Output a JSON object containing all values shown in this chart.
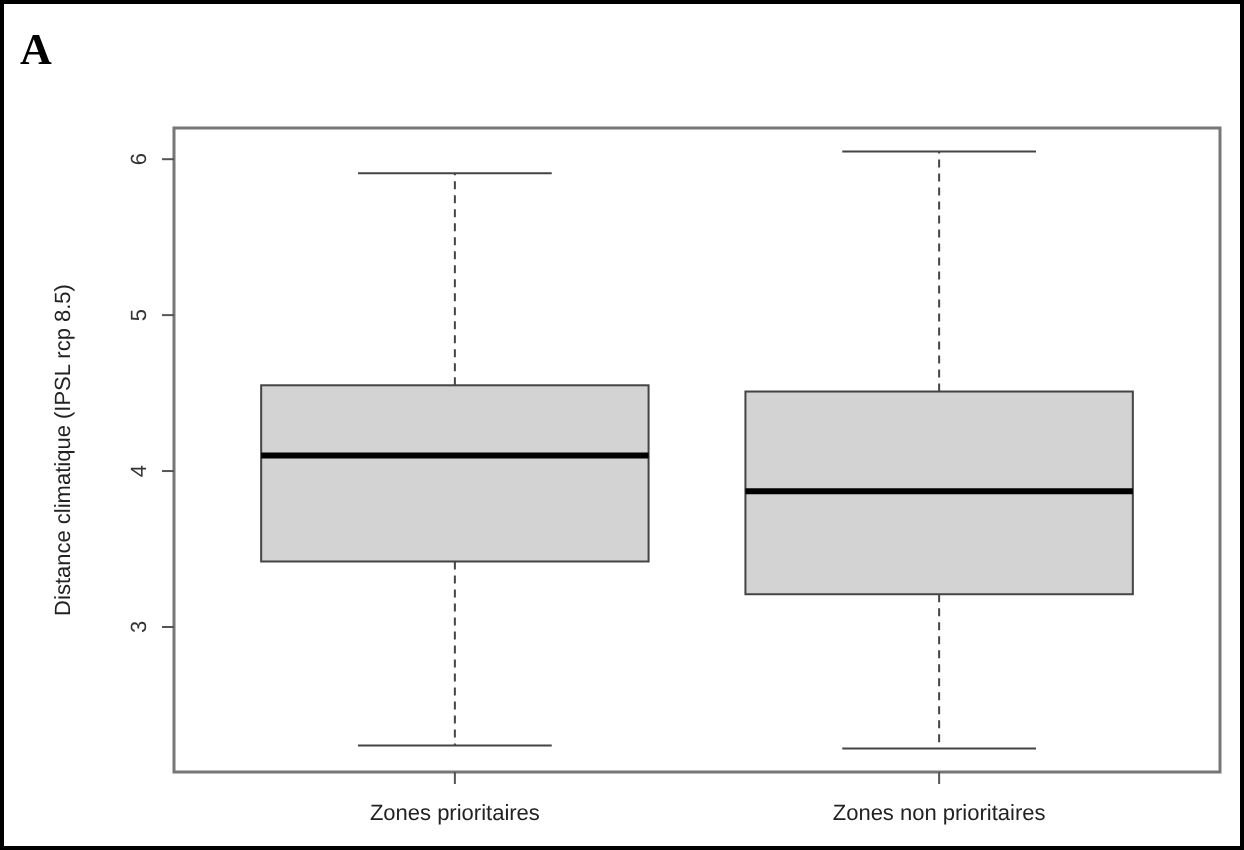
{
  "chart_data": {
    "type": "box",
    "annotations": [
      "A"
    ],
    "ylabel": "Distance climatique (IPSL rcp 8.5)",
    "categories": [
      "Zones prioritaires",
      "Zones non prioritaires"
    ],
    "boxes": [
      {
        "low": 2.24,
        "q1": 3.42,
        "median": 4.1,
        "q3": 4.55,
        "high": 5.91
      },
      {
        "low": 2.22,
        "q1": 3.21,
        "median": 3.87,
        "q3": 4.51,
        "high": 6.05
      }
    ],
    "color": "#d3d3d3",
    "ylim": [
      2.07,
      6.2
    ],
    "yticks": [
      3,
      4,
      5,
      6
    ],
    "grid": false
  }
}
